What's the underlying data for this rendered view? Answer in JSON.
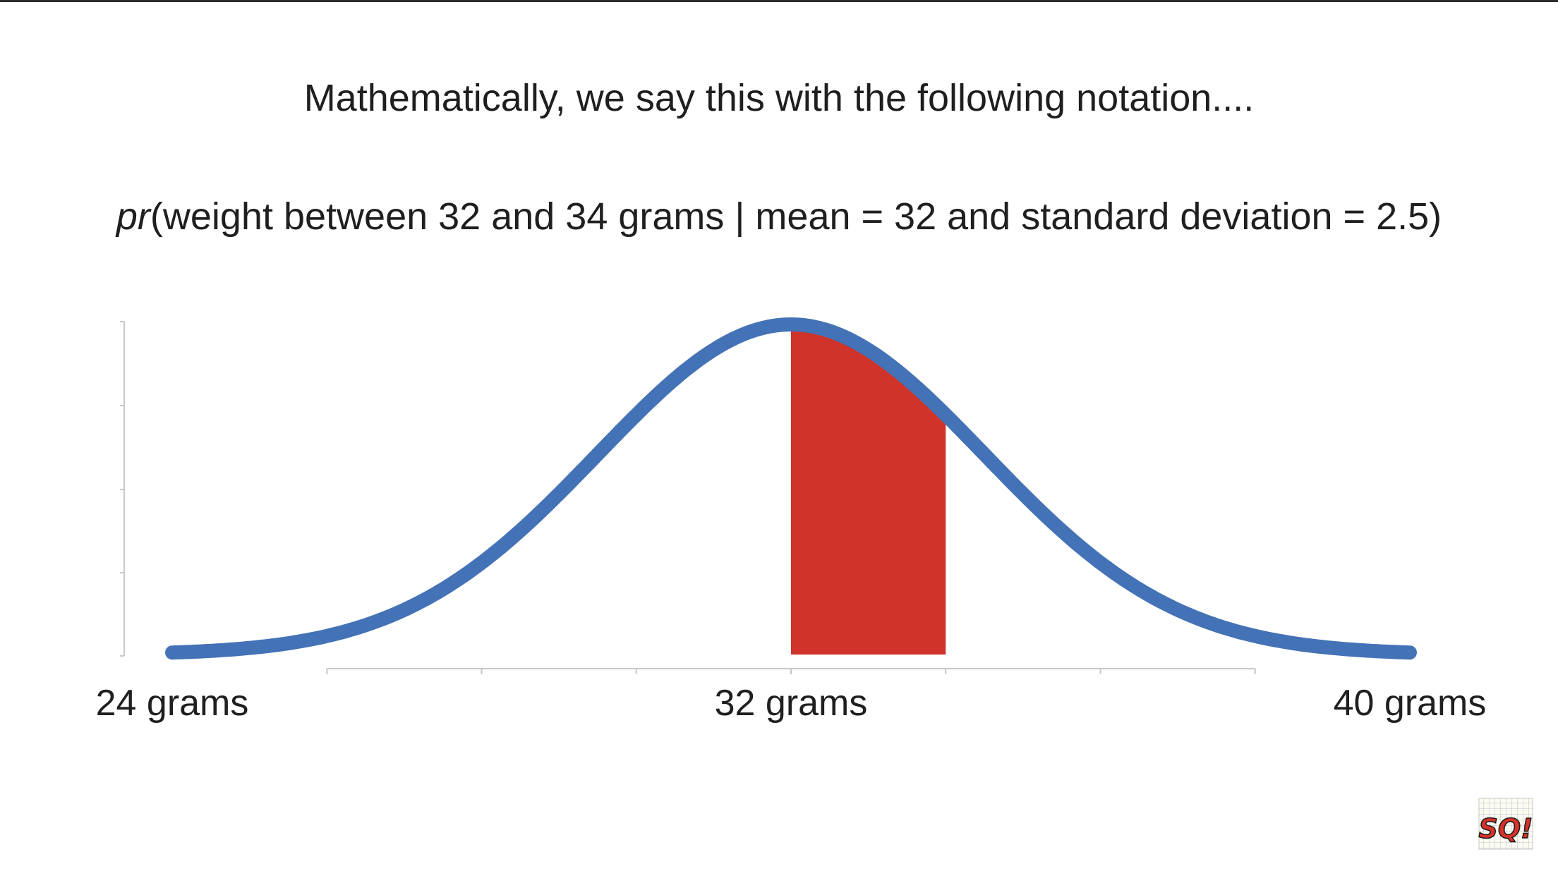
{
  "heading": "Mathematically, we say this with the following notation....",
  "notation": {
    "func": "pr",
    "rest": "(weight between 32 and 34 grams | mean = 32 and standard deviation = 2.5)"
  },
  "colors": {
    "curve": "#4472b6",
    "area": "#cf3329",
    "axis": "#c8c8c8",
    "text": "#1f1f1f"
  },
  "logo": {
    "icon": "channel-logo-icon",
    "text": "SQ!"
  },
  "chart_data": {
    "type": "line",
    "distribution": "normal",
    "mean": 32,
    "sd": 2.5,
    "xlim": [
      24,
      40
    ],
    "shaded_range": [
      32,
      34
    ],
    "x_ticks": [
      {
        "value": 24,
        "label": "24 grams"
      },
      {
        "value": 32,
        "label": "32 grams"
      },
      {
        "value": 40,
        "label": "40 grams"
      }
    ],
    "x_minor_ticks": [
      26,
      28,
      30,
      32,
      34,
      36,
      38
    ],
    "grid": false,
    "legend": "none"
  }
}
